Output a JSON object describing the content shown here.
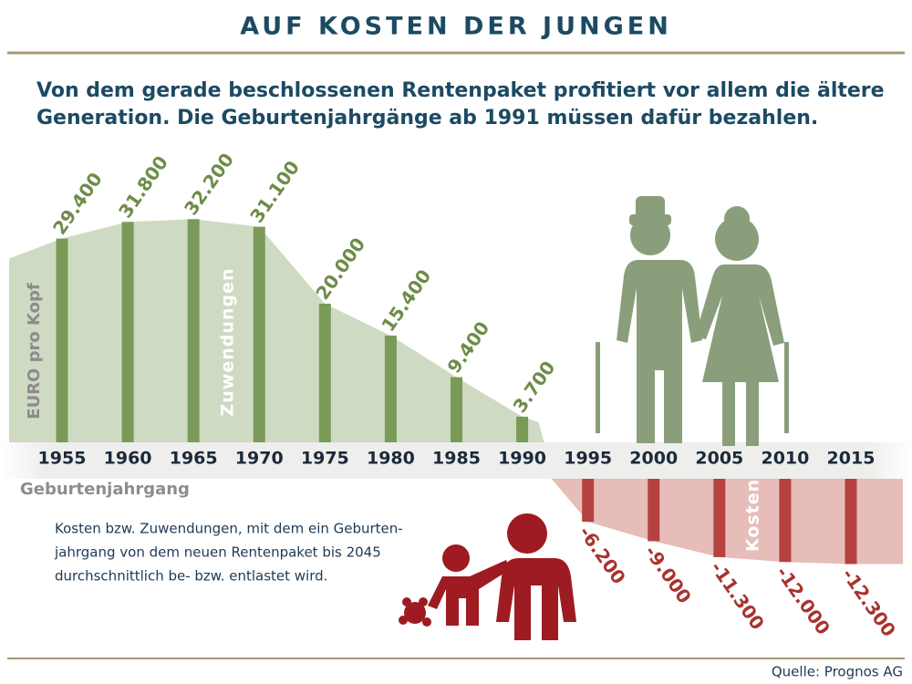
{
  "title": "AUF KOSTEN DER JUNGEN",
  "subtitle": [
    "Von dem gerade beschlossenen Rentenpaket profitiert vor allem die ältere",
    "Generation. Die Geburtenjahrgänge ab 1991 müssen dafür bezahlen."
  ],
  "chart_data": {
    "type": "bar",
    "x_label": "Geburtenjahrgang",
    "y_label": "EURO pro Kopf",
    "x": [
      1955,
      1960,
      1965,
      1970,
      1975,
      1980,
      1985,
      1990,
      1995,
      2000,
      2005,
      2010,
      2015
    ],
    "values": [
      29400,
      31800,
      32200,
      31100,
      20000,
      15400,
      9400,
      3700,
      -6200,
      -9000,
      -11300,
      -12000,
      -12300
    ],
    "value_labels": [
      "29.400",
      "31.800",
      "32.200",
      "31.100",
      "20.000",
      "15.400",
      "9.400",
      "3.700",
      "-6.200",
      "-9.000",
      "-11.300",
      "-12.000",
      "-12.300"
    ],
    "positive_color": "#7a9a58",
    "negative_color": "#b5423f",
    "annotations": [
      "Zuwendungen",
      "Kosten"
    ]
  },
  "note": [
    "Kosten bzw. Zuwendungen, mit dem ein Geburten-",
    "jahrgang von dem neuen Rentenpaket bis 2045",
    "durchschnittlich be- bzw. entlastet wird."
  ],
  "source": "Quelle: Prognos AG"
}
